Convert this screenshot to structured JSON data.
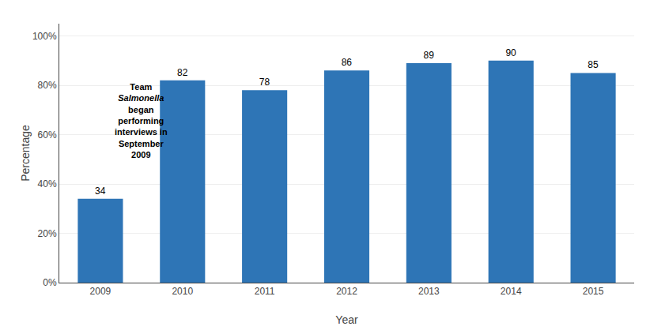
{
  "chart_data": {
    "type": "bar",
    "categories": [
      "2009",
      "2010",
      "2011",
      "2012",
      "2013",
      "2014",
      "2015"
    ],
    "values": [
      34,
      82,
      78,
      86,
      89,
      90,
      85
    ],
    "color": "#2E75B6",
    "xlabel": "Year",
    "ylabel": "Percentage",
    "ylim": [
      0,
      105
    ],
    "yticks": [
      {
        "value": 0,
        "label": "0%"
      },
      {
        "value": 20,
        "label": "20%"
      },
      {
        "value": 40,
        "label": "40%"
      },
      {
        "value": 60,
        "label": "60%"
      },
      {
        "value": 80,
        "label": "80%"
      },
      {
        "value": 100,
        "label": "100%"
      }
    ],
    "grid": true,
    "data_labels": true,
    "annotations": [
      "Team",
      "Salmonella",
      "began",
      "performing",
      "interviews in",
      "September",
      "2009"
    ]
  }
}
